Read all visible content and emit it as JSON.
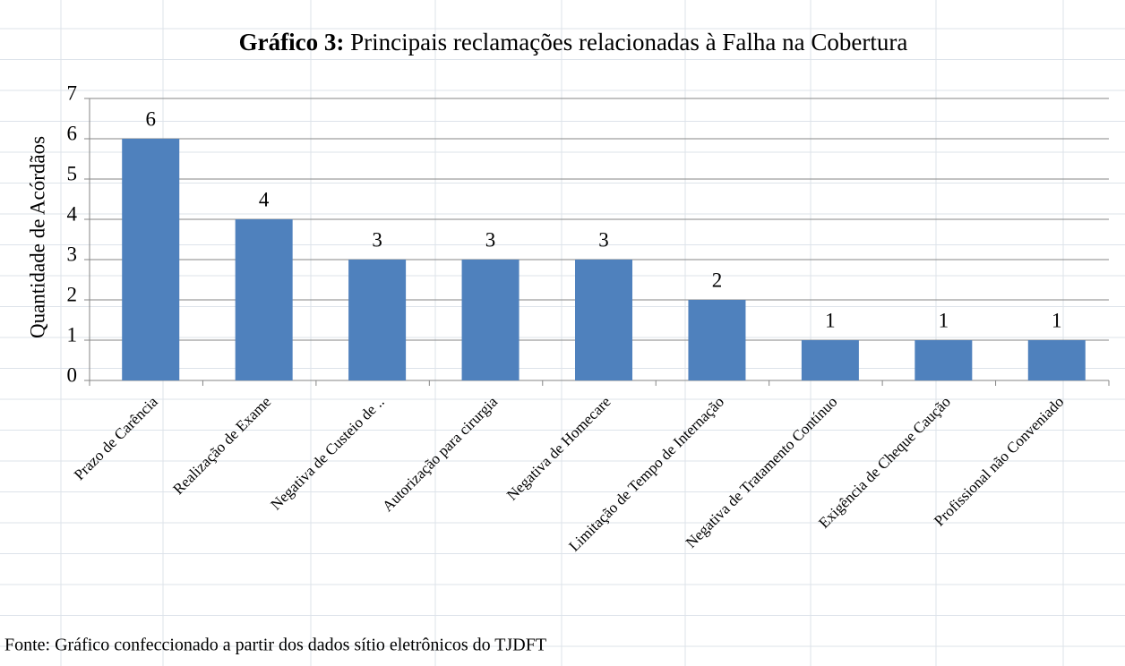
{
  "chart_data": {
    "type": "bar",
    "title": {
      "number": "Gráfico 3:",
      "text": "Principais reclamações relacionadas à Falha na Cobertura"
    },
    "y_label": "Quantidade de Acórdãos",
    "categories": [
      "Prazo de Carência",
      "Realização  de Exame",
      "Negativa de Custeio de ..",
      "Autorização  para cirurgia",
      "Negativa  de Homecare",
      "Limitação  de Tempo de Internação",
      "Negativa de Tratamento  Contínuo",
      "Exigência  de Cheque Caução",
      "Profissional não Conveniado"
    ],
    "values": [
      6,
      4,
      3,
      3,
      3,
      2,
      1,
      1,
      1
    ],
    "color": "#4f81bd",
    "ylim": [
      0,
      7
    ],
    "yticks": [
      0,
      1,
      2,
      3,
      4,
      5,
      6,
      7
    ],
    "grid": true,
    "source": "Fonte: Gráfico confeccionado a partir dos dados  sítio eletrônicos do TJDFT"
  }
}
